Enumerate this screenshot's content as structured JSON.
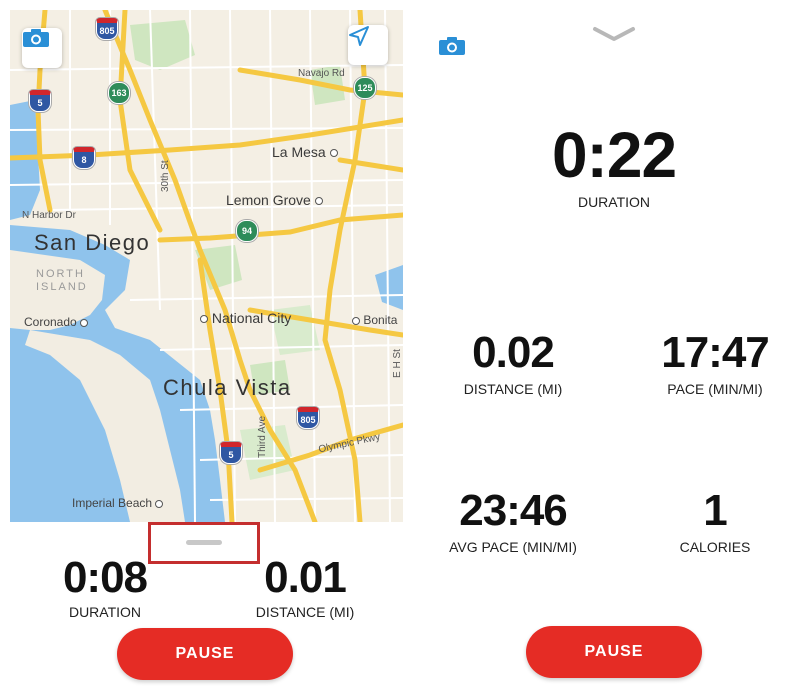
{
  "left": {
    "map": {
      "labels": {
        "san_diego": "San Diego",
        "chula_vista": "Chula Vista",
        "la_mesa": "La Mesa",
        "lemon_grove": "Lemon Grove",
        "national_city": "National City",
        "coronado": "Coronado",
        "imperial_beach": "Imperial Beach",
        "bonita": "Bonita",
        "north_island": "NORTH\nISLAND",
        "n_harbor_dr": "N Harbor Dr",
        "navajo_rd": "Navajo Rd",
        "thirtieth_st": "30th St",
        "third_ave": "Third Ave",
        "olympic_pkwy": "Olympic Pkwy",
        "e_h_st": "E H St"
      },
      "shields": {
        "i805_north": "805",
        "sr163": "163",
        "i5_north": "5",
        "i8": "8",
        "sr125": "125",
        "sr94": "94",
        "i805_south": "805",
        "i5_south": "5"
      }
    },
    "stats": {
      "duration": {
        "value": "0:08",
        "label": "DURATION"
      },
      "distance": {
        "value": "0.01",
        "label": "DISTANCE (MI)"
      }
    },
    "pause_label": "PAUSE"
  },
  "right": {
    "duration": {
      "value": "0:22",
      "label": "DURATION"
    },
    "distance": {
      "value": "0.02",
      "label": "DISTANCE (MI)"
    },
    "pace": {
      "value": "17:47",
      "label": "PACE (MIN/MI)"
    },
    "avg_pace": {
      "value": "23:46",
      "label": "AVG PACE (MIN/MI)"
    },
    "calories": {
      "value": "1",
      "label": "CALORIES"
    },
    "pause_label": "PAUSE"
  },
  "colors": {
    "accent": "#e52c25",
    "camera_blue": "#2a8fd6",
    "highlight_box": "#c42e2e"
  }
}
